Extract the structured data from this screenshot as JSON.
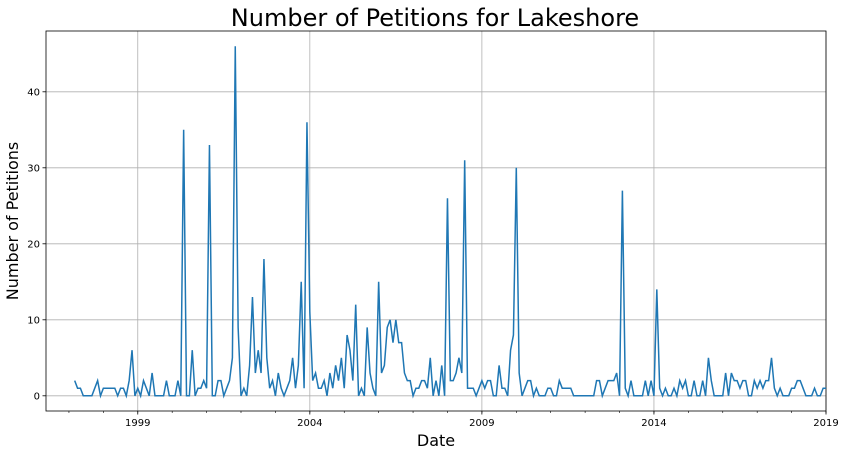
{
  "chart_data": {
    "type": "line",
    "title": "Number of Petitions for Lakeshore",
    "xlabel": "Date",
    "ylabel": "Number of Petitions",
    "x_axis": "date",
    "xlim": [
      "1996-05",
      "2019-01"
    ],
    "ylim": [
      -2,
      48
    ],
    "x_ticks": [
      "1999",
      "2004",
      "2009",
      "2014",
      "2019"
    ],
    "y_ticks": [
      0,
      10,
      20,
      30,
      40
    ],
    "grid": true,
    "line_color": "#1f77b4",
    "series": [
      {
        "x": [
          "1997-03",
          "1997-04",
          "1997-05",
          "1997-06",
          "1997-07",
          "1997-08",
          "1997-09",
          "1997-10",
          "1997-11",
          "1997-12",
          "1998-01",
          "1998-02",
          "1998-03",
          "1998-04",
          "1998-05",
          "1998-06",
          "1998-07",
          "1998-08",
          "1998-09",
          "1998-10",
          "1998-11",
          "1998-12",
          "1999-01",
          "1999-02",
          "1999-03",
          "1999-04",
          "1999-05",
          "1999-06",
          "1999-07",
          "1999-08",
          "1999-09",
          "1999-10",
          "1999-11",
          "1999-12",
          "2000-01",
          "2000-02",
          "2000-03",
          "2000-04",
          "2000-05",
          "2000-06",
          "2000-07",
          "2000-08",
          "2000-09",
          "2000-10",
          "2000-11",
          "2000-12",
          "2001-01",
          "2001-02",
          "2001-03",
          "2001-04",
          "2001-05",
          "2001-06",
          "2001-07",
          "2001-08",
          "2001-09",
          "2001-10",
          "2001-11",
          "2001-12",
          "2002-01",
          "2002-02",
          "2002-03",
          "2002-04",
          "2002-05",
          "2002-06",
          "2002-07",
          "2002-08",
          "2002-09",
          "2002-10",
          "2002-11",
          "2002-12",
          "2003-01",
          "2003-02",
          "2003-03",
          "2003-04",
          "2003-05",
          "2003-06",
          "2003-07",
          "2003-08",
          "2003-09",
          "2003-10",
          "2003-11",
          "2003-12",
          "2004-01",
          "2004-02",
          "2004-03",
          "2004-04",
          "2004-05",
          "2004-06",
          "2004-07",
          "2004-08",
          "2004-09",
          "2004-10",
          "2004-11",
          "2004-12",
          "2005-01",
          "2005-02",
          "2005-03",
          "2005-04",
          "2005-05",
          "2005-06",
          "2005-07",
          "2005-08",
          "2005-09",
          "2005-10",
          "2005-11",
          "2005-12",
          "2006-01",
          "2006-02",
          "2006-03",
          "2006-04",
          "2006-05",
          "2006-06",
          "2006-07",
          "2006-08",
          "2006-09",
          "2006-10",
          "2006-11",
          "2006-12",
          "2007-01",
          "2007-02",
          "2007-03",
          "2007-04",
          "2007-05",
          "2007-06",
          "2007-07",
          "2007-08",
          "2007-09",
          "2007-10",
          "2007-11",
          "2007-12",
          "2008-01",
          "2008-02",
          "2008-03",
          "2008-04",
          "2008-05",
          "2008-06",
          "2008-07",
          "2008-08",
          "2008-09",
          "2008-10",
          "2008-11",
          "2008-12",
          "2009-01",
          "2009-02",
          "2009-03",
          "2009-04",
          "2009-05",
          "2009-06",
          "2009-07",
          "2009-08",
          "2009-09",
          "2009-10",
          "2009-11",
          "2009-12",
          "2010-01",
          "2010-02",
          "2010-03",
          "2010-04",
          "2010-05",
          "2010-06",
          "2010-07",
          "2010-08",
          "2010-09",
          "2010-10",
          "2010-11",
          "2010-12",
          "2011-01",
          "2011-02",
          "2011-03",
          "2011-04",
          "2011-05",
          "2011-06",
          "2011-07",
          "2011-08",
          "2011-09",
          "2011-10",
          "2011-11",
          "2011-12",
          "2012-01",
          "2012-02",
          "2012-03",
          "2012-04",
          "2012-05",
          "2012-06",
          "2012-07",
          "2012-08",
          "2012-09",
          "2012-10",
          "2012-11",
          "2012-12",
          "2013-01",
          "2013-02",
          "2013-03",
          "2013-04",
          "2013-05",
          "2013-06",
          "2013-07",
          "2013-08",
          "2013-09",
          "2013-10",
          "2013-11",
          "2013-12",
          "2014-01",
          "2014-02",
          "2014-03",
          "2014-04",
          "2014-05",
          "2014-06",
          "2014-07",
          "2014-08",
          "2014-09",
          "2014-10",
          "2014-11",
          "2014-12",
          "2015-01",
          "2015-02",
          "2015-03",
          "2015-04",
          "2015-05",
          "2015-06",
          "2015-07",
          "2015-08",
          "2015-09",
          "2015-10",
          "2015-11",
          "2015-12",
          "2016-01",
          "2016-02",
          "2016-03",
          "2016-04",
          "2016-05",
          "2016-06",
          "2016-07",
          "2016-08",
          "2016-09",
          "2016-10",
          "2016-11",
          "2016-12",
          "2017-01",
          "2017-02",
          "2017-03",
          "2017-04",
          "2017-05",
          "2017-06",
          "2017-07",
          "2017-08",
          "2017-09",
          "2017-10",
          "2017-11",
          "2017-12",
          "2018-01",
          "2018-02",
          "2018-03",
          "2018-04",
          "2018-05",
          "2018-06",
          "2018-07",
          "2018-08",
          "2018-09",
          "2018-10",
          "2018-11",
          "2018-12",
          "2019-01"
        ],
        "y": [
          2,
          1,
          1,
          0,
          0,
          0,
          0,
          1,
          2,
          0,
          1,
          1,
          1,
          1,
          1,
          0,
          1,
          1,
          0,
          2,
          6,
          0,
          1,
          0,
          2,
          1,
          0,
          3,
          0,
          0,
          0,
          0,
          2,
          0,
          0,
          0,
          2,
          0,
          35,
          0,
          0,
          6,
          0,
          1,
          1,
          2,
          1,
          33,
          0,
          0,
          2,
          2,
          0,
          1,
          2,
          5,
          46,
          9,
          0,
          1,
          0,
          4,
          13,
          3,
          6,
          3,
          18,
          5,
          1,
          2,
          0,
          3,
          1,
          0,
          1,
          2,
          5,
          1,
          4,
          15,
          1,
          36,
          11,
          2,
          3,
          1,
          1,
          2,
          0,
          3,
          1,
          4,
          2,
          5,
          1,
          8,
          6,
          2,
          12,
          0,
          1,
          0,
          9,
          3,
          1,
          0,
          15,
          3,
          4,
          9,
          10,
          7,
          10,
          7,
          7,
          3,
          2,
          2,
          0,
          1,
          1,
          2,
          2,
          1,
          5,
          0,
          2,
          0,
          4,
          0,
          26,
          2,
          2,
          3,
          5,
          3,
          31,
          1,
          1,
          1,
          0,
          1,
          2,
          1,
          2,
          2,
          0,
          0,
          4,
          1,
          1,
          0,
          6,
          8,
          30,
          3,
          0,
          1,
          2,
          2,
          0,
          1,
          0,
          0,
          0,
          1,
          1,
          0,
          0,
          2,
          1,
          1,
          1,
          1,
          0,
          0,
          0,
          0,
          0,
          0,
          0,
          0,
          2,
          2,
          0,
          1,
          2,
          2,
          2,
          3,
          0,
          27,
          1,
          0,
          2,
          0,
          0,
          0,
          0,
          2,
          0,
          2,
          0,
          14,
          1,
          0,
          1,
          0,
          0,
          1,
          0,
          2,
          1,
          2,
          0,
          0,
          2,
          0,
          0,
          2,
          0,
          5,
          2,
          0,
          0,
          0,
          0,
          3,
          0,
          3,
          2,
          2,
          1,
          2,
          2,
          0,
          0,
          2,
          1,
          2,
          1,
          2,
          2,
          5,
          1,
          0,
          1,
          0,
          0,
          0,
          1,
          1,
          2,
          2,
          1,
          0,
          0,
          0,
          1,
          0,
          0,
          1,
          1
        ]
      }
    ]
  }
}
